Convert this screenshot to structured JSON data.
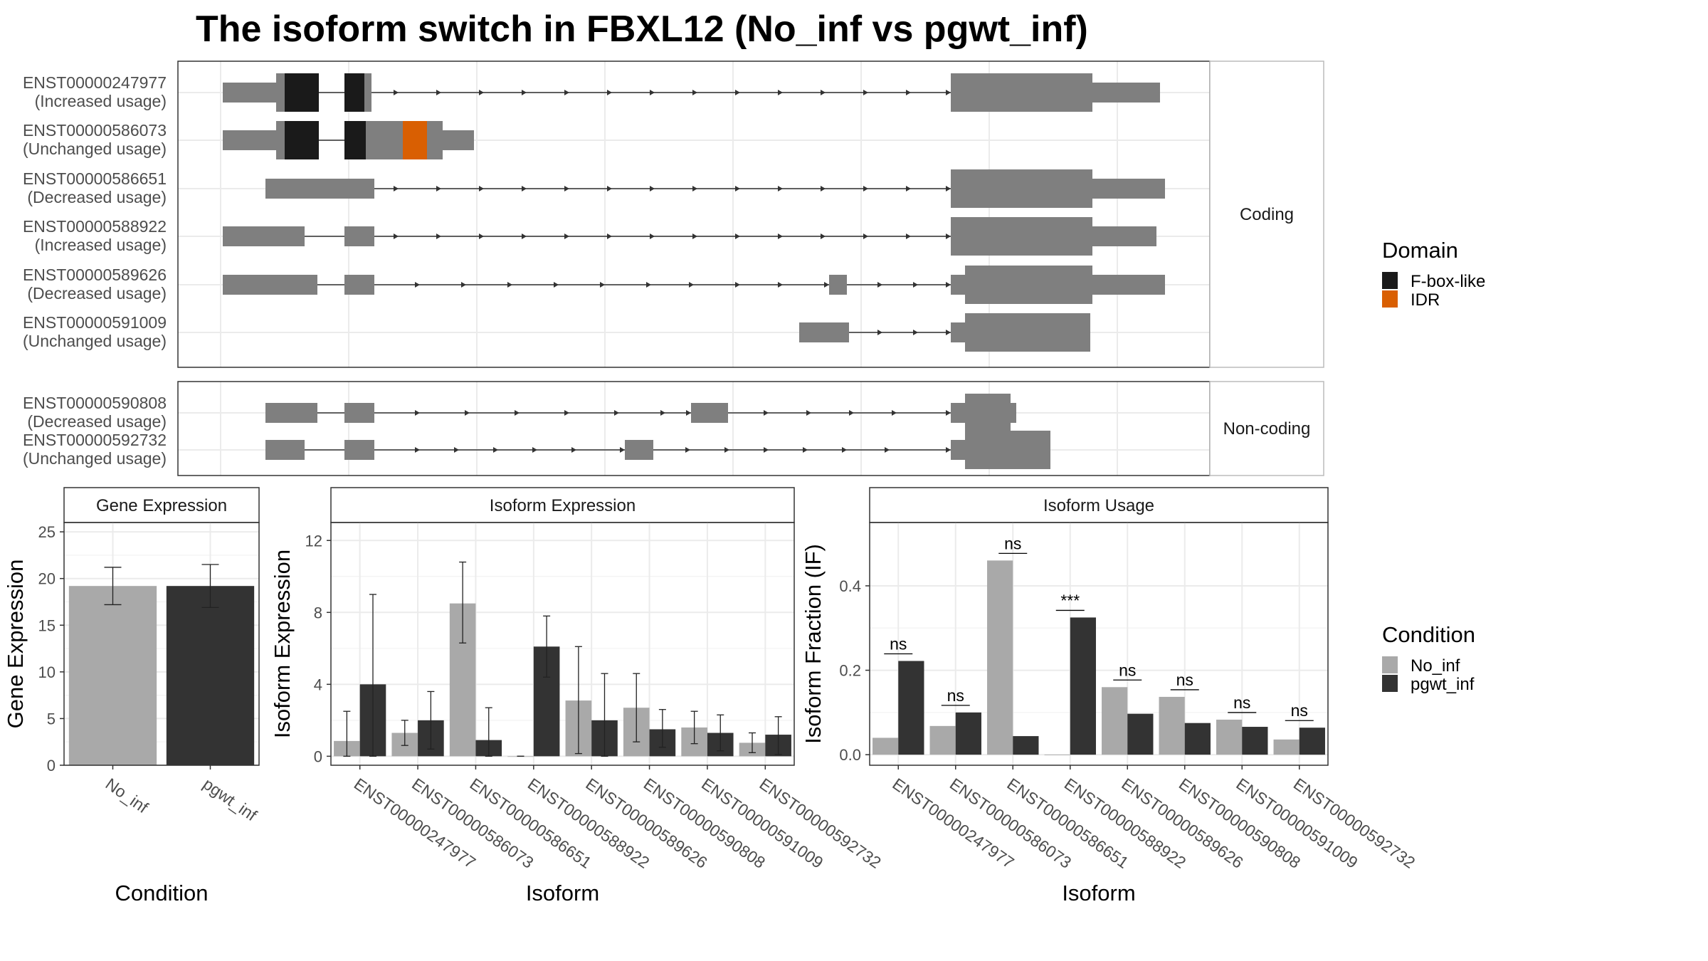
{
  "title": "The isoform switch in FBXL12 (No_inf vs pgwt_inf)",
  "colors": {
    "exon": "#7f7f7f",
    "fbox": "#1a1a1a",
    "idr": "#d95f02",
    "no_inf": "#a9a9a9",
    "pgwt_inf": "#333333",
    "grid": "#ebebeb",
    "panel_border": "#333333",
    "strip_border": "#bbbbbb"
  },
  "structure": {
    "coding_label": "Coding",
    "noncoding_label": "Non-coding",
    "coding": [
      {
        "id": "ENST00000247977",
        "usage": "(Increased usage)"
      },
      {
        "id": "ENST00000586073",
        "usage": "(Unchanged usage)"
      },
      {
        "id": "ENST00000586651",
        "usage": "(Decreased usage)"
      },
      {
        "id": "ENST00000588922",
        "usage": "(Increased usage)"
      },
      {
        "id": "ENST00000589626",
        "usage": "(Decreased usage)"
      },
      {
        "id": "ENST00000591009",
        "usage": "(Unchanged usage)"
      }
    ],
    "noncoding": [
      {
        "id": "ENST00000590808",
        "usage": "(Decreased usage)"
      },
      {
        "id": "ENST00000592732",
        "usage": "(Unchanged usage)"
      }
    ]
  },
  "legend_domain": {
    "title": "Domain",
    "items": [
      {
        "label": "F-box-like",
        "color": "#1a1a1a"
      },
      {
        "label": "IDR",
        "color": "#d95f02"
      }
    ]
  },
  "legend_condition": {
    "title": "Condition",
    "items": [
      {
        "label": "No_inf",
        "color": "#a9a9a9"
      },
      {
        "label": "pgwt_inf",
        "color": "#333333"
      }
    ]
  },
  "chart_data": [
    {
      "type": "bar",
      "title": "Gene Expression",
      "xlabel": "Condition",
      "ylabel": "Gene Expression",
      "ylim": [
        0,
        26
      ],
      "yticks": [
        0,
        5,
        10,
        15,
        20,
        25
      ],
      "categories": [
        "No_inf",
        "pgwt_inf"
      ],
      "values": [
        19.2,
        19.2
      ],
      "error_low": [
        17.2,
        16.9
      ],
      "error_high": [
        21.2,
        21.5
      ],
      "colors": [
        "#a9a9a9",
        "#333333"
      ]
    },
    {
      "type": "bar",
      "title": "Isoform Expression",
      "xlabel": "Isoform",
      "ylabel": "Isoform Expression",
      "ylim": [
        -0.5,
        13
      ],
      "yticks": [
        0,
        4,
        8,
        12
      ],
      "categories": [
        "ENST00000247977",
        "ENST00000586073",
        "ENST00000586651",
        "ENST00000588922",
        "ENST00000589626",
        "ENST00000590808",
        "ENST00000591009",
        "ENST00000592732"
      ],
      "series": [
        {
          "name": "No_inf",
          "values": [
            0.85,
            1.3,
            8.5,
            0.0,
            3.1,
            2.7,
            1.6,
            0.75
          ],
          "error_low": [
            0.0,
            0.6,
            6.3,
            0.0,
            0.15,
            0.8,
            0.7,
            0.2
          ],
          "error_high": [
            2.5,
            2.0,
            10.8,
            0.0,
            6.1,
            4.6,
            2.5,
            1.3
          ]
        },
        {
          "name": "pgwt_inf",
          "values": [
            4.0,
            2.0,
            0.9,
            6.1,
            2.0,
            1.5,
            1.3,
            1.2
          ],
          "error_low": [
            0.0,
            0.4,
            0.0,
            4.4,
            0.0,
            0.5,
            0.3,
            0.1
          ],
          "error_high": [
            9.0,
            3.6,
            2.7,
            7.8,
            4.6,
            2.6,
            2.3,
            2.2
          ]
        }
      ]
    },
    {
      "type": "bar",
      "title": "Isoform Usage",
      "xlabel": "Isoform",
      "ylabel": "Isoform Fraction (IF)",
      "ylim": [
        -0.025,
        0.55
      ],
      "yticks": [
        0.0,
        0.2,
        0.4
      ],
      "ytick_labels": [
        "0.0",
        "0.2",
        "0.4"
      ],
      "categories": [
        "ENST00000247977",
        "ENST00000586073",
        "ENST00000586651",
        "ENST00000588922",
        "ENST00000589626",
        "ENST00000590808",
        "ENST00000591009",
        "ENST00000592732"
      ],
      "series": [
        {
          "name": "No_inf",
          "values": [
            0.04,
            0.068,
            0.46,
            0.0,
            0.16,
            0.137,
            0.083,
            0.036
          ]
        },
        {
          "name": "pgwt_inf",
          "values": [
            0.222,
            0.1,
            0.044,
            0.325,
            0.097,
            0.075,
            0.066,
            0.064
          ]
        }
      ],
      "significance": [
        "ns",
        "ns",
        "ns",
        "***",
        "ns",
        "ns",
        "ns",
        "ns"
      ]
    }
  ]
}
